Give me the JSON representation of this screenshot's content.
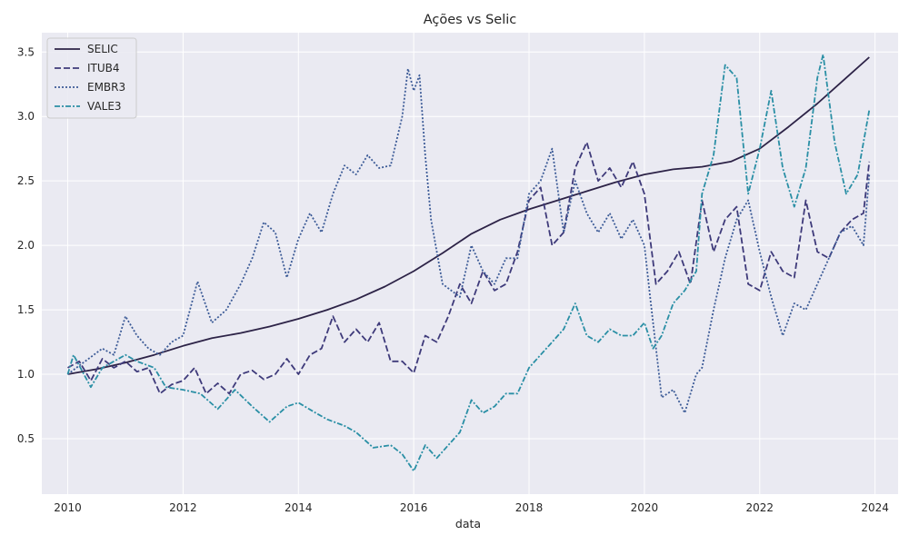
{
  "chart_data": {
    "type": "line",
    "title": "Ações vs Selic",
    "xlabel": "data",
    "ylabel": "",
    "xlim": [
      2009.55,
      2024.4
    ],
    "ylim": [
      0.07,
      3.65
    ],
    "x_ticks": [
      2010,
      2012,
      2014,
      2016,
      2018,
      2020,
      2022,
      2024
    ],
    "y_ticks": [
      0.5,
      1.0,
      1.5,
      2.0,
      2.5,
      3.0,
      3.5
    ],
    "y_tick_labels": [
      "0.5",
      "1.0",
      "1.5",
      "2.0",
      "2.5",
      "3.0",
      "3.5"
    ],
    "grid": true,
    "legend_position": "top-left",
    "background_color": "#eaeaf2",
    "series": [
      {
        "name": "SELIC",
        "color": "#2d2347",
        "style": "solid",
        "points": [
          [
            2010.0,
            1.0
          ],
          [
            2010.5,
            1.04
          ],
          [
            2011.0,
            1.09
          ],
          [
            2011.5,
            1.15
          ],
          [
            2012.0,
            1.22
          ],
          [
            2012.5,
            1.28
          ],
          [
            2013.0,
            1.32
          ],
          [
            2013.5,
            1.37
          ],
          [
            2014.0,
            1.43
          ],
          [
            2014.5,
            1.5
          ],
          [
            2015.0,
            1.58
          ],
          [
            2015.5,
            1.68
          ],
          [
            2016.0,
            1.8
          ],
          [
            2016.5,
            1.94
          ],
          [
            2017.0,
            2.09
          ],
          [
            2017.5,
            2.2
          ],
          [
            2018.0,
            2.28
          ],
          [
            2018.5,
            2.35
          ],
          [
            2019.0,
            2.42
          ],
          [
            2019.5,
            2.49
          ],
          [
            2020.0,
            2.55
          ],
          [
            2020.5,
            2.59
          ],
          [
            2021.0,
            2.61
          ],
          [
            2021.5,
            2.65
          ],
          [
            2022.0,
            2.75
          ],
          [
            2022.5,
            2.92
          ],
          [
            2023.0,
            3.1
          ],
          [
            2023.5,
            3.3
          ],
          [
            2023.9,
            3.46
          ]
        ]
      },
      {
        "name": "ITUB4",
        "color": "#3e3a7a",
        "style": "dashed",
        "points": [
          [
            2010.0,
            1.05
          ],
          [
            2010.2,
            1.1
          ],
          [
            2010.4,
            0.95
          ],
          [
            2010.6,
            1.12
          ],
          [
            2010.8,
            1.05
          ],
          [
            2011.0,
            1.1
          ],
          [
            2011.2,
            1.02
          ],
          [
            2011.4,
            1.05
          ],
          [
            2011.6,
            0.85
          ],
          [
            2011.8,
            0.92
          ],
          [
            2012.0,
            0.95
          ],
          [
            2012.2,
            1.05
          ],
          [
            2012.4,
            0.85
          ],
          [
            2012.6,
            0.93
          ],
          [
            2012.8,
            0.85
          ],
          [
            2013.0,
            1.0
          ],
          [
            2013.2,
            1.03
          ],
          [
            2013.4,
            0.96
          ],
          [
            2013.6,
            1.0
          ],
          [
            2013.8,
            1.12
          ],
          [
            2014.0,
            1.0
          ],
          [
            2014.2,
            1.15
          ],
          [
            2014.4,
            1.2
          ],
          [
            2014.6,
            1.45
          ],
          [
            2014.8,
            1.25
          ],
          [
            2015.0,
            1.35
          ],
          [
            2015.2,
            1.25
          ],
          [
            2015.4,
            1.4
          ],
          [
            2015.6,
            1.1
          ],
          [
            2015.8,
            1.1
          ],
          [
            2016.0,
            1.01
          ],
          [
            2016.2,
            1.3
          ],
          [
            2016.4,
            1.25
          ],
          [
            2016.6,
            1.45
          ],
          [
            2016.8,
            1.7
          ],
          [
            2017.0,
            1.55
          ],
          [
            2017.2,
            1.8
          ],
          [
            2017.4,
            1.65
          ],
          [
            2017.6,
            1.7
          ],
          [
            2017.8,
            1.95
          ],
          [
            2018.0,
            2.35
          ],
          [
            2018.2,
            2.45
          ],
          [
            2018.4,
            2.0
          ],
          [
            2018.6,
            2.1
          ],
          [
            2018.8,
            2.6
          ],
          [
            2019.0,
            2.8
          ],
          [
            2019.2,
            2.5
          ],
          [
            2019.4,
            2.6
          ],
          [
            2019.6,
            2.45
          ],
          [
            2019.8,
            2.65
          ],
          [
            2020.0,
            2.4
          ],
          [
            2020.2,
            1.7
          ],
          [
            2020.4,
            1.8
          ],
          [
            2020.6,
            1.95
          ],
          [
            2020.8,
            1.7
          ],
          [
            2021.0,
            2.35
          ],
          [
            2021.2,
            1.95
          ],
          [
            2021.4,
            2.2
          ],
          [
            2021.6,
            2.3
          ],
          [
            2021.8,
            1.7
          ],
          [
            2022.0,
            1.65
          ],
          [
            2022.2,
            1.95
          ],
          [
            2022.4,
            1.8
          ],
          [
            2022.6,
            1.75
          ],
          [
            2022.8,
            2.35
          ],
          [
            2023.0,
            1.95
          ],
          [
            2023.2,
            1.9
          ],
          [
            2023.4,
            2.1
          ],
          [
            2023.6,
            2.2
          ],
          [
            2023.8,
            2.25
          ],
          [
            2023.9,
            2.65
          ]
        ]
      },
      {
        "name": "EMBR3",
        "color": "#3c5b97",
        "style": "dotted",
        "points": [
          [
            2010.0,
            1.0
          ],
          [
            2010.3,
            1.1
          ],
          [
            2010.6,
            1.2
          ],
          [
            2010.8,
            1.15
          ],
          [
            2011.0,
            1.45
          ],
          [
            2011.2,
            1.3
          ],
          [
            2011.4,
            1.2
          ],
          [
            2011.6,
            1.15
          ],
          [
            2011.8,
            1.25
          ],
          [
            2012.0,
            1.3
          ],
          [
            2012.25,
            1.72
          ],
          [
            2012.5,
            1.4
          ],
          [
            2012.75,
            1.5
          ],
          [
            2013.0,
            1.7
          ],
          [
            2013.2,
            1.9
          ],
          [
            2013.4,
            2.18
          ],
          [
            2013.6,
            2.1
          ],
          [
            2013.8,
            1.75
          ],
          [
            2014.0,
            2.05
          ],
          [
            2014.2,
            2.25
          ],
          [
            2014.4,
            2.1
          ],
          [
            2014.6,
            2.4
          ],
          [
            2014.8,
            2.62
          ],
          [
            2015.0,
            2.55
          ],
          [
            2015.2,
            2.7
          ],
          [
            2015.4,
            2.6
          ],
          [
            2015.6,
            2.62
          ],
          [
            2015.8,
            3.0
          ],
          [
            2015.9,
            3.37
          ],
          [
            2016.0,
            3.2
          ],
          [
            2016.1,
            3.32
          ],
          [
            2016.2,
            2.7
          ],
          [
            2016.3,
            2.2
          ],
          [
            2016.5,
            1.7
          ],
          [
            2016.8,
            1.6
          ],
          [
            2017.0,
            2.0
          ],
          [
            2017.2,
            1.8
          ],
          [
            2017.4,
            1.7
          ],
          [
            2017.6,
            1.9
          ],
          [
            2017.8,
            1.9
          ],
          [
            2018.0,
            2.4
          ],
          [
            2018.2,
            2.5
          ],
          [
            2018.4,
            2.75
          ],
          [
            2018.6,
            2.1
          ],
          [
            2018.8,
            2.5
          ],
          [
            2019.0,
            2.25
          ],
          [
            2019.2,
            2.1
          ],
          [
            2019.4,
            2.25
          ],
          [
            2019.6,
            2.05
          ],
          [
            2019.8,
            2.2
          ],
          [
            2020.0,
            2.0
          ],
          [
            2020.1,
            1.6
          ],
          [
            2020.3,
            0.82
          ],
          [
            2020.5,
            0.88
          ],
          [
            2020.7,
            0.7
          ],
          [
            2020.9,
            1.0
          ],
          [
            2021.0,
            1.05
          ],
          [
            2021.2,
            1.5
          ],
          [
            2021.4,
            1.9
          ],
          [
            2021.6,
            2.2
          ],
          [
            2021.8,
            2.35
          ],
          [
            2022.0,
            1.95
          ],
          [
            2022.2,
            1.6
          ],
          [
            2022.4,
            1.3
          ],
          [
            2022.6,
            1.55
          ],
          [
            2022.8,
            1.5
          ],
          [
            2023.0,
            1.7
          ],
          [
            2023.2,
            1.9
          ],
          [
            2023.4,
            2.1
          ],
          [
            2023.6,
            2.15
          ],
          [
            2023.8,
            2.0
          ],
          [
            2023.9,
            2.55
          ]
        ]
      },
      {
        "name": "VALE3",
        "color": "#2a8fa5",
        "style": "dashdot",
        "points": [
          [
            2010.0,
            1.0
          ],
          [
            2010.1,
            1.15
          ],
          [
            2010.4,
            0.9
          ],
          [
            2010.6,
            1.05
          ],
          [
            2010.8,
            1.1
          ],
          [
            2011.0,
            1.15
          ],
          [
            2011.2,
            1.1
          ],
          [
            2011.5,
            1.05
          ],
          [
            2011.7,
            0.9
          ],
          [
            2012.0,
            0.88
          ],
          [
            2012.3,
            0.85
          ],
          [
            2012.6,
            0.73
          ],
          [
            2012.9,
            0.88
          ],
          [
            2013.2,
            0.75
          ],
          [
            2013.5,
            0.63
          ],
          [
            2013.8,
            0.75
          ],
          [
            2014.0,
            0.78
          ],
          [
            2014.3,
            0.7
          ],
          [
            2014.5,
            0.65
          ],
          [
            2014.8,
            0.6
          ],
          [
            2015.0,
            0.55
          ],
          [
            2015.3,
            0.43
          ],
          [
            2015.6,
            0.45
          ],
          [
            2015.8,
            0.38
          ],
          [
            2016.0,
            0.25
          ],
          [
            2016.2,
            0.45
          ],
          [
            2016.4,
            0.35
          ],
          [
            2016.6,
            0.45
          ],
          [
            2016.8,
            0.55
          ],
          [
            2017.0,
            0.8
          ],
          [
            2017.2,
            0.7
          ],
          [
            2017.4,
            0.75
          ],
          [
            2017.6,
            0.85
          ],
          [
            2017.8,
            0.85
          ],
          [
            2018.0,
            1.05
          ],
          [
            2018.2,
            1.15
          ],
          [
            2018.4,
            1.25
          ],
          [
            2018.6,
            1.35
          ],
          [
            2018.8,
            1.55
          ],
          [
            2019.0,
            1.3
          ],
          [
            2019.2,
            1.25
          ],
          [
            2019.4,
            1.35
          ],
          [
            2019.6,
            1.3
          ],
          [
            2019.8,
            1.3
          ],
          [
            2020.0,
            1.4
          ],
          [
            2020.15,
            1.2
          ],
          [
            2020.3,
            1.3
          ],
          [
            2020.5,
            1.55
          ],
          [
            2020.7,
            1.65
          ],
          [
            2020.9,
            1.8
          ],
          [
            2021.0,
            2.4
          ],
          [
            2021.2,
            2.7
          ],
          [
            2021.4,
            3.4
          ],
          [
            2021.6,
            3.3
          ],
          [
            2021.8,
            2.4
          ],
          [
            2022.0,
            2.75
          ],
          [
            2022.2,
            3.2
          ],
          [
            2022.4,
            2.6
          ],
          [
            2022.6,
            2.3
          ],
          [
            2022.8,
            2.6
          ],
          [
            2023.0,
            3.3
          ],
          [
            2023.1,
            3.48
          ],
          [
            2023.3,
            2.8
          ],
          [
            2023.5,
            2.4
          ],
          [
            2023.7,
            2.55
          ],
          [
            2023.9,
            3.05
          ]
        ]
      }
    ]
  }
}
